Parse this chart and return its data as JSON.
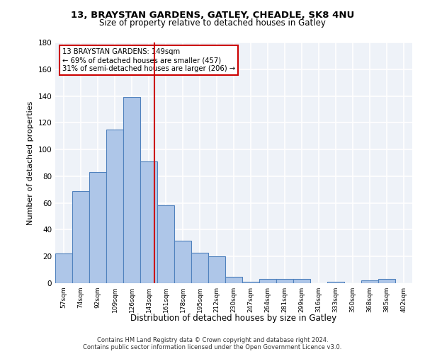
{
  "title1": "13, BRAYSTAN GARDENS, GATLEY, CHEADLE, SK8 4NU",
  "title2": "Size of property relative to detached houses in Gatley",
  "xlabel": "Distribution of detached houses by size in Gatley",
  "ylabel": "Number of detached properties",
  "bar_labels": [
    "57sqm",
    "74sqm",
    "92sqm",
    "109sqm",
    "126sqm",
    "143sqm",
    "161sqm",
    "178sqm",
    "195sqm",
    "212sqm",
    "230sqm",
    "247sqm",
    "264sqm",
    "281sqm",
    "299sqm",
    "316sqm",
    "333sqm",
    "350sqm",
    "368sqm",
    "385sqm",
    "402sqm"
  ],
  "bar_values": [
    22,
    69,
    83,
    115,
    139,
    91,
    58,
    32,
    23,
    20,
    5,
    1,
    3,
    3,
    3,
    0,
    1,
    0,
    2,
    3,
    0
  ],
  "bar_color": "#aec6e8",
  "bar_edge_color": "#4f81bd",
  "annotation_line1": "13 BRAYSTAN GARDENS: 149sqm",
  "annotation_line2": "← 69% of detached houses are smaller (457)",
  "annotation_line3": "31% of semi-detached houses are larger (206) →",
  "vline_color": "#cc0000",
  "annotation_box_color": "#cc0000",
  "ylim": [
    0,
    180
  ],
  "yticks": [
    0,
    20,
    40,
    60,
    80,
    100,
    120,
    140,
    160,
    180
  ],
  "footer1": "Contains HM Land Registry data © Crown copyright and database right 2024.",
  "footer2": "Contains public sector information licensed under the Open Government Licence v3.0.",
  "bg_color": "#eef2f8",
  "grid_color": "#ffffff",
  "fig_bg": "#ffffff"
}
